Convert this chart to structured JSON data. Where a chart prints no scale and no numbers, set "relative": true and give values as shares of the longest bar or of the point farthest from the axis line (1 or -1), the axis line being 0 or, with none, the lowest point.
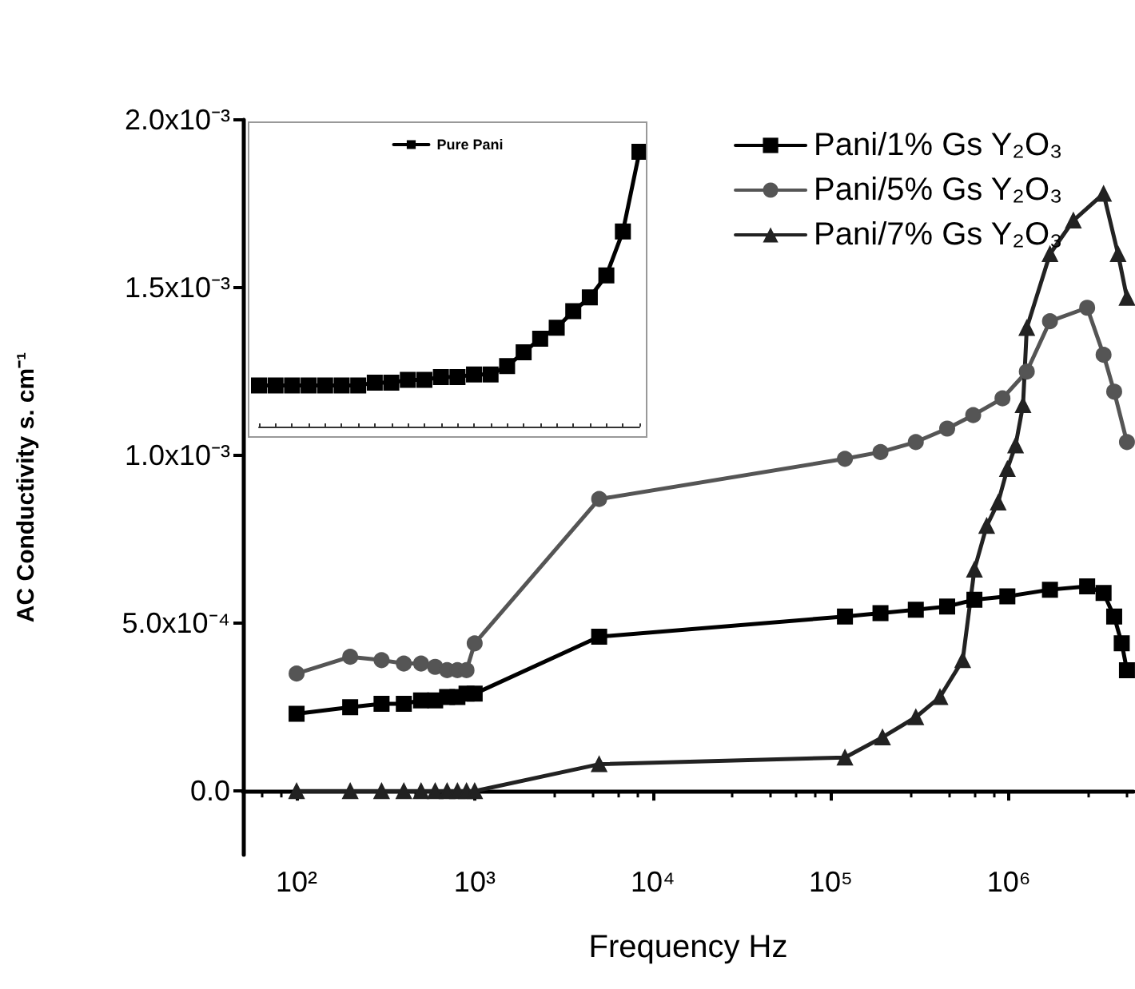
{
  "chart_data": [
    {
      "type": "line",
      "xlabel": "Frequency Hz",
      "ylabel": "AC Conductivity s. cm⁻¹",
      "log": "x",
      "xlim": [
        50,
        5000000
      ],
      "xticks": [
        {
          "value": 100,
          "label": "10²"
        },
        {
          "value": 1000,
          "label": "10³"
        },
        {
          "value": 10000,
          "label": "10⁴"
        },
        {
          "value": 100000,
          "label": "10⁵"
        },
        {
          "value": 1000000,
          "label": "10⁶"
        }
      ],
      "ylim": [
        -0.00019,
        0.002
      ],
      "yticks": [
        {
          "value": 0,
          "label": "0.0"
        },
        {
          "value": 0.0005,
          "label": "5.0x10⁻⁴"
        },
        {
          "value": 0.001,
          "label": "1.0x10⁻³"
        },
        {
          "value": 0.0015,
          "label": "1.5x10⁻³"
        },
        {
          "value": 0.002,
          "label": "2.0x10⁻³"
        }
      ],
      "grid": false,
      "legend": "top right",
      "line_style": "solid",
      "series": [
        {
          "name": "Pani/1% Gs Y₂O₃",
          "color": "#000000",
          "marker": "square",
          "x": [
            100,
            200,
            300,
            400,
            500,
            600,
            700,
            800,
            900,
            1000,
            5000,
            120000,
            190000,
            300000,
            450000,
            640000,
            980000,
            1700000,
            2750000,
            3400000,
            3900000,
            4300000,
            4600000
          ],
          "values": [
            0.00023,
            0.00025,
            0.00026,
            0.00026,
            0.00027,
            0.00027,
            0.00028,
            0.00028,
            0.00029,
            0.00029,
            0.00046,
            0.00052,
            0.00053,
            0.00054,
            0.00055,
            0.00057,
            0.00058,
            0.0006,
            0.00061,
            0.00059,
            0.00052,
            0.00044,
            0.00036
          ]
        },
        {
          "name": "Pani/5% Gs Y₂O₃",
          "color": "#555555",
          "marker": "circle",
          "x": [
            100,
            200,
            300,
            400,
            500,
            600,
            700,
            800,
            900,
            1000,
            5000,
            120000,
            190000,
            300000,
            450000,
            630000,
            920000,
            1260000,
            1700000,
            2750000,
            3400000,
            3900000,
            4600000
          ],
          "values": [
            0.00035,
            0.0004,
            0.00039,
            0.00038,
            0.00038,
            0.00037,
            0.00036,
            0.00036,
            0.00036,
            0.00044,
            0.00087,
            0.00099,
            0.00101,
            0.00104,
            0.00108,
            0.00112,
            0.00117,
            0.00125,
            0.0014,
            0.00144,
            0.0013,
            0.00119,
            0.00104
          ]
        },
        {
          "name": "Pani/7% Gs Y₂O₃",
          "color": "#222222",
          "marker": "triangle",
          "x": [
            100,
            200,
            300,
            400,
            500,
            600,
            700,
            800,
            900,
            1000,
            5000,
            120000,
            195000,
            300000,
            410000,
            550000,
            640000,
            750000,
            870000,
            980000,
            1090000,
            1200000,
            1260000,
            1700000,
            2300000,
            3400000,
            4100000,
            4600000
          ],
          "values": [
            0,
            0,
            0,
            0,
            0,
            0,
            0,
            0,
            0,
            0,
            8e-05,
            0.0001,
            0.00016,
            0.00022,
            0.00028,
            0.00039,
            0.00066,
            0.00079,
            0.00086,
            0.00096,
            0.00103,
            0.00115,
            0.00138,
            0.0016,
            0.0017,
            0.00178,
            0.0016,
            0.00147
          ]
        }
      ]
    },
    {
      "type": "line",
      "relative": true,
      "tick_labels": false,
      "grid": false,
      "legend": "top",
      "marker": "square",
      "categories": [
        null,
        null,
        null,
        null,
        null,
        null,
        null,
        null,
        null,
        null,
        null,
        null,
        null,
        null,
        null,
        null,
        null,
        null,
        null,
        null,
        null,
        null,
        null,
        null
      ],
      "series": [
        {
          "name": "Pure Pani",
          "color": "#000000",
          "values": [
            0.15,
            0.15,
            0.15,
            0.15,
            0.15,
            0.15,
            0.15,
            0.16,
            0.16,
            0.17,
            0.17,
            0.18,
            0.18,
            0.19,
            0.19,
            0.22,
            0.27,
            0.32,
            0.36,
            0.42,
            0.47,
            0.55,
            0.71,
            1
          ]
        }
      ]
    }
  ]
}
